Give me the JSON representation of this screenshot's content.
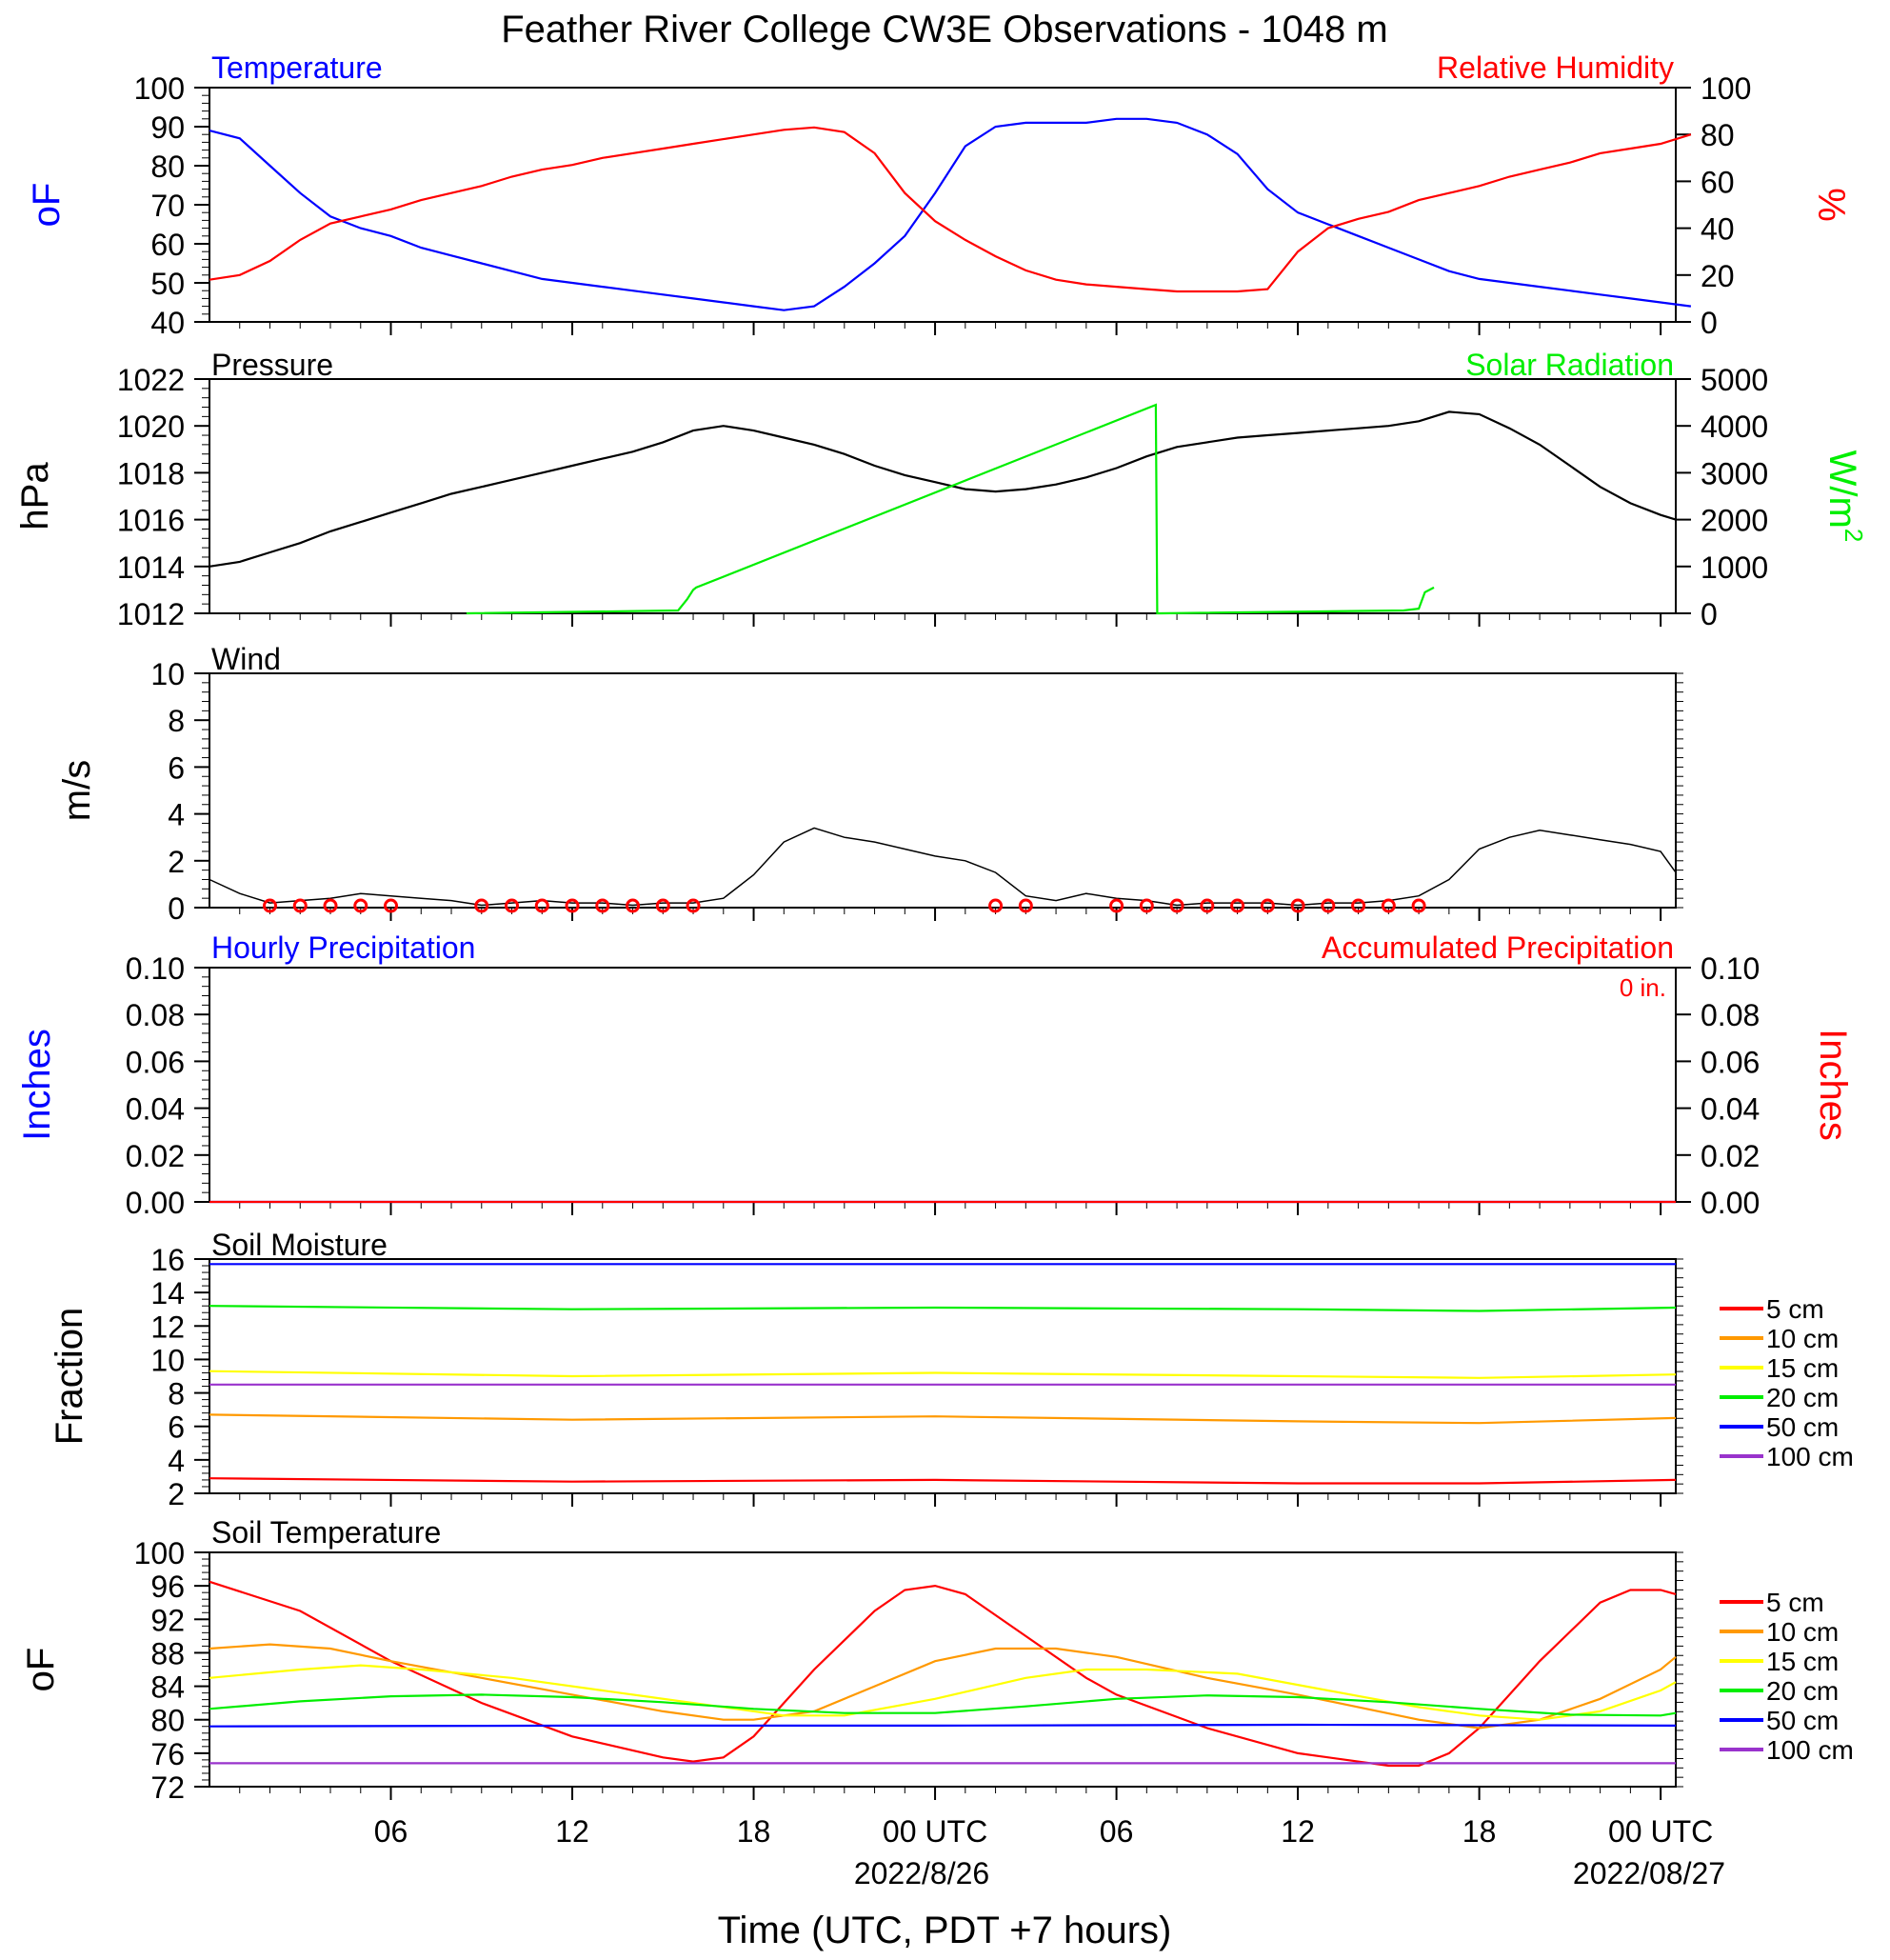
{
  "title": "Feather River College CW3E Observations - 1048 m",
  "xlabel": "Time (UTC, PDT +7 hours)",
  "x_ticks": [
    "06",
    "12",
    "18",
    "00 UTC",
    "06",
    "12",
    "18",
    "00 UTC"
  ],
  "x_dates": [
    "2022/8/26",
    "2022/08/27"
  ],
  "colors": {
    "blue": "#0000ff",
    "red": "#ff0000",
    "green": "#00ee00",
    "black": "#000000",
    "orange": "#ff9900",
    "yellow": "#ffff00",
    "purple": "#9933cc"
  },
  "chart_data": [
    {
      "type": "line",
      "panel": "temperature_humidity",
      "left_title": "Temperature",
      "right_title": "Relative Humidity",
      "ylabel": "oF",
      "ylabel_right": "%",
      "ylim": [
        40,
        100
      ],
      "ylim_right": [
        0,
        100
      ],
      "y_ticks": [
        100,
        90,
        80,
        70,
        60,
        50,
        40
      ],
      "y_ticks_right": [
        100,
        80,
        60,
        40,
        20,
        0
      ],
      "x_hours": [
        0,
        1,
        2,
        3,
        4,
        5,
        6,
        7,
        8,
        9,
        10,
        11,
        12,
        13,
        14,
        15,
        16,
        17,
        18,
        19,
        20,
        21,
        22,
        23,
        24,
        25,
        26,
        27,
        28,
        29,
        30,
        31,
        32,
        33,
        34,
        35,
        36,
        37,
        38,
        39,
        40,
        41,
        42,
        43,
        44,
        45,
        46,
        47,
        48,
        49
      ],
      "series": [
        {
          "name": "Temperature",
          "axis": "left",
          "color": "#0000ff",
          "values": [
            89,
            87,
            80,
            73,
            67,
            64,
            62,
            59,
            57,
            55,
            53,
            51,
            50,
            49,
            48,
            47,
            46,
            45,
            44,
            43,
            44,
            49,
            55,
            62,
            73,
            85,
            90,
            91,
            91,
            91,
            92,
            92,
            91,
            88,
            83,
            74,
            68,
            65,
            62,
            59,
            56,
            53,
            51,
            50,
            49,
            48,
            47,
            46,
            45,
            44
          ]
        },
        {
          "name": "Relative Humidity",
          "axis": "right",
          "color": "#ff0000",
          "values": [
            18,
            20,
            26,
            35,
            42,
            45,
            48,
            52,
            55,
            58,
            62,
            65,
            67,
            70,
            72,
            74,
            76,
            78,
            80,
            82,
            83,
            81,
            72,
            55,
            43,
            35,
            28,
            22,
            18,
            16,
            15,
            14,
            13,
            13,
            13,
            14,
            30,
            40,
            44,
            47,
            52,
            55,
            58,
            62,
            65,
            68,
            72,
            74,
            76,
            80
          ]
        }
      ]
    },
    {
      "type": "line",
      "panel": "pressure_solar",
      "left_title": "Pressure",
      "right_title": "Solar Radiation",
      "ylabel": "hPa",
      "ylabel_right": "W/m",
      "ylabel_right_sup": "2",
      "ylim": [
        1012,
        1022
      ],
      "ylim_right": [
        0,
        5000
      ],
      "y_ticks": [
        1022,
        1020,
        1018,
        1016,
        1014,
        1012
      ],
      "y_ticks_right": [
        5000,
        4000,
        3000,
        2000,
        1000,
        0
      ],
      "series": [
        {
          "name": "Pressure",
          "axis": "left",
          "color": "#000000",
          "x": [
            0,
            1,
            2,
            3,
            4,
            5,
            6,
            7,
            8,
            9,
            10,
            11,
            12,
            13,
            14,
            15,
            16,
            17,
            18,
            19,
            20,
            21,
            22,
            23,
            24,
            25,
            26,
            27,
            28,
            29,
            30,
            31,
            32,
            33,
            34,
            35,
            36,
            37,
            38,
            39,
            40,
            41,
            42,
            43,
            44,
            45,
            46,
            47,
            48,
            48.5
          ],
          "values": [
            1014.0,
            1014.2,
            1014.6,
            1015.0,
            1015.5,
            1015.9,
            1016.3,
            1016.7,
            1017.1,
            1017.4,
            1017.7,
            1018.0,
            1018.3,
            1018.6,
            1018.9,
            1019.3,
            1019.8,
            1020.0,
            1019.8,
            1019.5,
            1019.2,
            1018.8,
            1018.3,
            1017.9,
            1017.6,
            1017.3,
            1017.2,
            1017.3,
            1017.5,
            1017.8,
            1018.2,
            1018.7,
            1019.1,
            1019.3,
            1019.5,
            1019.6,
            1019.7,
            1019.8,
            1019.9,
            1020.0,
            1020.2,
            1020.6,
            1020.5,
            1019.9,
            1019.2,
            1018.3,
            1017.4,
            1016.7,
            1016.2,
            1016.0
          ]
        },
        {
          "name": "Solar Radiation",
          "axis": "right",
          "color": "#00ee00",
          "x": [
            8.5,
            15.5,
            15.8,
            16.0,
            16.1,
            31.3,
            31.35,
            31.4,
            31.45,
            39.5,
            40.0,
            40.2,
            40.5
          ],
          "values": [
            0,
            60,
            300,
            500,
            550,
            4450,
            0,
            0,
            0,
            60,
            100,
            450,
            550
          ]
        }
      ]
    },
    {
      "type": "line",
      "panel": "wind",
      "left_title": "Wind",
      "ylabel": "m/s",
      "ylim": [
        0,
        10
      ],
      "y_ticks": [
        10,
        8,
        6,
        4,
        2,
        0
      ],
      "series": [
        {
          "name": "Wind speed",
          "color": "#000000",
          "x": [
            0,
            1,
            2,
            3,
            4,
            5,
            6,
            7,
            8,
            9,
            10,
            11,
            12,
            13,
            14,
            15,
            16,
            17,
            18,
            19,
            20,
            21,
            22,
            23,
            24,
            25,
            26,
            27,
            28,
            29,
            30,
            31,
            32,
            33,
            34,
            35,
            36,
            37,
            38,
            39,
            40,
            41,
            42,
            43,
            44,
            45,
            46,
            47,
            48,
            48.5
          ],
          "values": [
            1.2,
            0.6,
            0.2,
            0.3,
            0.4,
            0.6,
            0.5,
            0.4,
            0.3,
            0.1,
            0.2,
            0.3,
            0.2,
            0.2,
            0.1,
            0.2,
            0.2,
            0.4,
            1.4,
            2.8,
            3.4,
            3.0,
            2.8,
            2.5,
            2.2,
            2.0,
            1.5,
            0.5,
            0.3,
            0.6,
            0.4,
            0.3,
            0.1,
            0.2,
            0.2,
            0.2,
            0.1,
            0.2,
            0.2,
            0.3,
            0.5,
            1.2,
            2.5,
            3.0,
            3.3,
            3.1,
            2.9,
            2.7,
            2.4,
            1.5
          ]
        },
        {
          "name": "Wind barbs (calm circles)",
          "color": "#ff0000",
          "calm_hours": [
            2,
            3,
            4,
            5,
            6,
            9,
            10,
            11,
            12,
            13,
            14,
            15,
            16,
            26,
            27,
            30,
            31,
            32,
            33,
            34,
            35,
            36,
            37,
            38,
            39,
            40
          ]
        }
      ]
    },
    {
      "type": "line",
      "panel": "precipitation",
      "left_title": "Hourly Precipitation",
      "right_title": "Accumulated Precipitation",
      "annotation": "0 in.",
      "ylabel": "Inches",
      "ylabel_right": "Inches",
      "ylim": [
        0,
        0.1
      ],
      "ylim_right": [
        0,
        0.1
      ],
      "y_ticks": [
        "0.10",
        "0.08",
        "0.06",
        "0.04",
        "0.02",
        "0.00"
      ],
      "y_ticks_right": [
        "0.10",
        "0.08",
        "0.06",
        "0.04",
        "0.02",
        "0.00"
      ],
      "series": [
        {
          "name": "Hourly Precipitation",
          "color": "#0000ff",
          "x": [
            0,
            48.5
          ],
          "values": [
            0,
            0
          ]
        },
        {
          "name": "Accumulated Precipitation",
          "color": "#ff0000",
          "x": [
            0,
            48.5
          ],
          "values": [
            0,
            0
          ]
        }
      ]
    },
    {
      "type": "line",
      "panel": "soil_moisture",
      "left_title": "Soil Moisture",
      "ylabel": "Fraction",
      "ylim": [
        2,
        16
      ],
      "y_ticks": [
        16,
        14,
        12,
        10,
        8,
        6,
        4,
        2
      ],
      "legend": [
        "5 cm",
        "10 cm",
        "15 cm",
        "20 cm",
        "50 cm",
        "100 cm"
      ],
      "series": [
        {
          "name": "5 cm",
          "color": "#ff0000",
          "x": [
            0,
            12,
            24,
            36,
            42,
            48.5
          ],
          "values": [
            2.9,
            2.7,
            2.8,
            2.6,
            2.6,
            2.8
          ]
        },
        {
          "name": "10 cm",
          "color": "#ff9900",
          "x": [
            0,
            12,
            24,
            36,
            42,
            48.5
          ],
          "values": [
            6.7,
            6.4,
            6.6,
            6.3,
            6.2,
            6.5
          ]
        },
        {
          "name": "15 cm",
          "color": "#ffff00",
          "x": [
            0,
            12,
            24,
            36,
            42,
            48.5
          ],
          "values": [
            9.3,
            9.0,
            9.2,
            9.0,
            8.9,
            9.1
          ]
        },
        {
          "name": "20 cm",
          "color": "#00ee00",
          "x": [
            0,
            12,
            24,
            36,
            42,
            48.5
          ],
          "values": [
            13.2,
            13.0,
            13.1,
            13.0,
            12.9,
            13.1
          ]
        },
        {
          "name": "50 cm",
          "color": "#0000ff",
          "x": [
            0,
            12,
            24,
            36,
            42,
            48.5
          ],
          "values": [
            15.7,
            15.7,
            15.7,
            15.7,
            15.7,
            15.7
          ]
        },
        {
          "name": "100 cm",
          "color": "#9933cc",
          "x": [
            0,
            12,
            24,
            36,
            42,
            48.5
          ],
          "values": [
            8.5,
            8.5,
            8.5,
            8.5,
            8.5,
            8.5
          ]
        }
      ]
    },
    {
      "type": "line",
      "panel": "soil_temperature",
      "left_title": "Soil Temperature",
      "ylabel": "oF",
      "ylim": [
        72,
        100
      ],
      "y_ticks": [
        100,
        96,
        92,
        88,
        84,
        80,
        76,
        72
      ],
      "legend": [
        "5 cm",
        "10 cm",
        "15 cm",
        "20 cm",
        "50 cm",
        "100 cm"
      ],
      "series": [
        {
          "name": "5 cm",
          "color": "#ff0000",
          "x": [
            0,
            3,
            6,
            9,
            12,
            15,
            16,
            17,
            18,
            20,
            22,
            23,
            24,
            25,
            27,
            29,
            30,
            33,
            36,
            39,
            40,
            41,
            42,
            44,
            46,
            47,
            48,
            48.5
          ],
          "values": [
            96.5,
            93,
            87,
            82,
            78,
            75.5,
            75,
            75.5,
            78,
            86,
            93,
            95.5,
            96,
            95,
            90,
            85,
            83,
            79,
            76,
            74.5,
            74.5,
            76,
            79,
            87,
            94,
            95.5,
            95.5,
            95
          ]
        },
        {
          "name": "10 cm",
          "color": "#ff9900",
          "x": [
            0,
            2,
            4,
            6,
            9,
            12,
            15,
            17,
            18,
            20,
            22,
            24,
            26,
            28,
            30,
            33,
            36,
            40,
            42,
            44,
            46,
            48,
            48.5
          ],
          "values": [
            88.5,
            89,
            88.5,
            87,
            85,
            83,
            81,
            80,
            80,
            81,
            84,
            87,
            88.5,
            88.5,
            87.5,
            85,
            83,
            80,
            79,
            80,
            82.5,
            86,
            87.5
          ]
        },
        {
          "name": "15 cm",
          "color": "#ffff00",
          "x": [
            0,
            3,
            5,
            7,
            10,
            13,
            16,
            19,
            21,
            24,
            27,
            29,
            31,
            34,
            37,
            40,
            42,
            44,
            46,
            48,
            48.5
          ],
          "values": [
            85,
            86,
            86.5,
            86,
            85,
            83.5,
            82,
            80.5,
            80.5,
            82.5,
            85,
            86,
            86,
            85.5,
            83.5,
            81.5,
            80.5,
            80,
            81,
            83.5,
            84.5
          ]
        },
        {
          "name": "20 cm",
          "color": "#00ee00",
          "x": [
            0,
            3,
            6,
            9,
            12,
            15,
            18,
            21,
            24,
            27,
            30,
            33,
            36,
            39,
            42,
            45,
            48,
            48.5
          ],
          "values": [
            81.3,
            82.2,
            82.8,
            83.0,
            82.7,
            82.1,
            81.3,
            80.8,
            80.8,
            81.6,
            82.5,
            82.9,
            82.7,
            82.1,
            81.3,
            80.6,
            80.5,
            80.8
          ]
        },
        {
          "name": "50 cm",
          "color": "#0000ff",
          "x": [
            0,
            12,
            24,
            36,
            48.5
          ],
          "values": [
            79.2,
            79.3,
            79.3,
            79.4,
            79.3
          ]
        },
        {
          "name": "100 cm",
          "color": "#9933cc",
          "x": [
            0,
            12,
            24,
            36,
            48.5
          ],
          "values": [
            74.8,
            74.8,
            74.8,
            74.8,
            74.8
          ]
        }
      ]
    }
  ]
}
